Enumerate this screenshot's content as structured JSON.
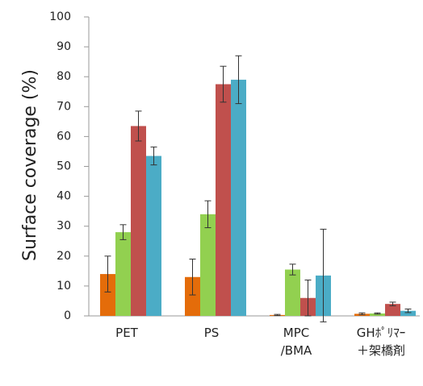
{
  "chart_data": {
    "type": "bar",
    "y_label": "Surface coverage (%)",
    "categories": [
      "PET",
      "PS",
      "MPC\n/BMA",
      "GHﾎﾟﾘﾏｰ\n＋架橋剤"
    ],
    "series": [
      {
        "color": "#e46c0a",
        "values": [
          14,
          13,
          0.3,
          0.7
        ],
        "errors": [
          6,
          6,
          0.2,
          0.3
        ]
      },
      {
        "color": "#92d050",
        "values": [
          28,
          34,
          15.5,
          0.8
        ],
        "errors": [
          2.5,
          4.5,
          1.8,
          0.2
        ]
      },
      {
        "color": "#c0504d",
        "values": [
          63.5,
          77.5,
          6,
          4
        ],
        "errors": [
          5,
          6,
          6,
          0.6
        ]
      },
      {
        "color": "#4bacc6",
        "values": [
          53.5,
          79,
          13.5,
          1.7
        ],
        "errors": [
          3,
          8,
          15.5,
          0.6
        ]
      }
    ],
    "ylim": [
      0,
      100
    ],
    "yticks": [
      0,
      10,
      20,
      30,
      40,
      50,
      60,
      70,
      80,
      90,
      100
    ],
    "grid": false
  }
}
